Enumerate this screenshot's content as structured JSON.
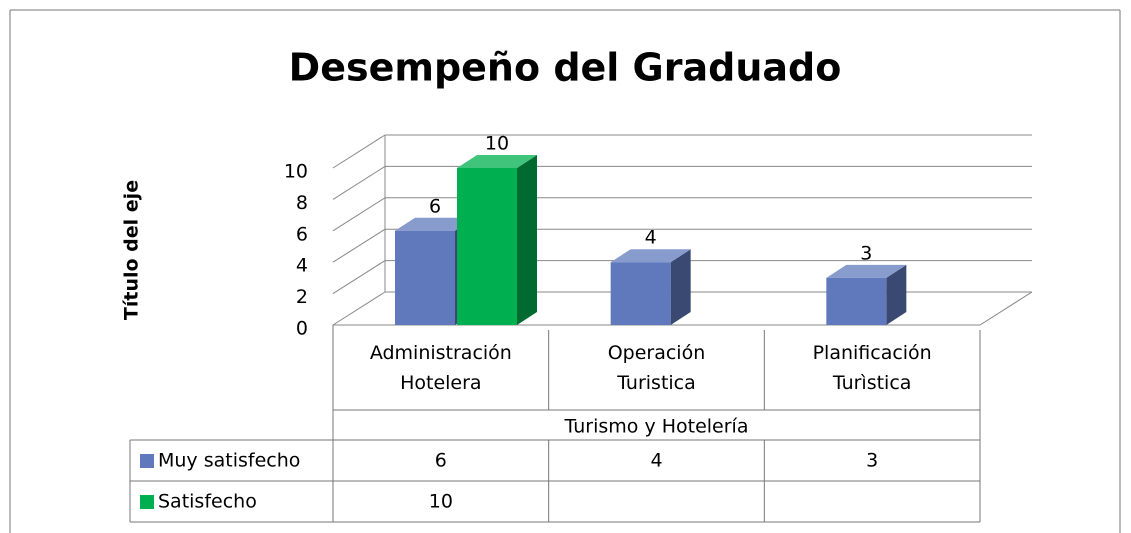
{
  "chart_data": {
    "type": "bar",
    "title": "Desempeño del Graduado",
    "y_label": "Título del eje",
    "categories": [
      "Administración Hotelera",
      "Operación Turistica",
      "Planificación Turìstica"
    ],
    "category_group": "Turismo y Hotelería",
    "series": [
      {
        "name": "Muy satisfecho",
        "color": "#6079bc",
        "values": [
          6,
          4,
          3
        ]
      },
      {
        "name": "Satisfecho",
        "color": "#00b050",
        "values": [
          10,
          null,
          null
        ]
      }
    ],
    "ylim": [
      0,
      10
    ],
    "yticks": [
      0,
      2,
      4,
      6,
      8,
      10
    ],
    "grid": true,
    "data_table": true
  }
}
